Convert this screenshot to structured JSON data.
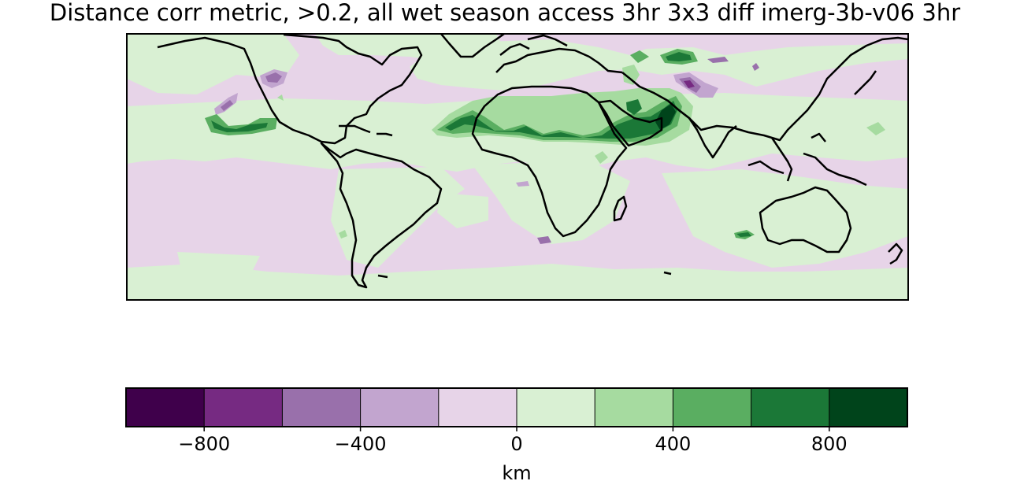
{
  "figure": {
    "title": "Distance corr metric, >0.2, all wet season access 3hr 3x3 diff imerg-3b-v06 3hr"
  },
  "colorbar": {
    "label": "km",
    "levels": [
      -1000,
      -800,
      -600,
      -400,
      -200,
      0,
      200,
      400,
      600,
      800,
      1000
    ],
    "colors": [
      "#3f004b",
      "#762a82",
      "#9970ab",
      "#c2a5cf",
      "#e7d4e8",
      "#d9f0d3",
      "#a6dba0",
      "#5aae61",
      "#1b7837",
      "#00441b"
    ],
    "ticks": [
      {
        "value": -800,
        "label": "−800"
      },
      {
        "value": -400,
        "label": "−400"
      },
      {
        "value": 0,
        "label": "0"
      },
      {
        "value": 400,
        "label": "400"
      },
      {
        "value": 800,
        "label": "800"
      }
    ]
  }
}
